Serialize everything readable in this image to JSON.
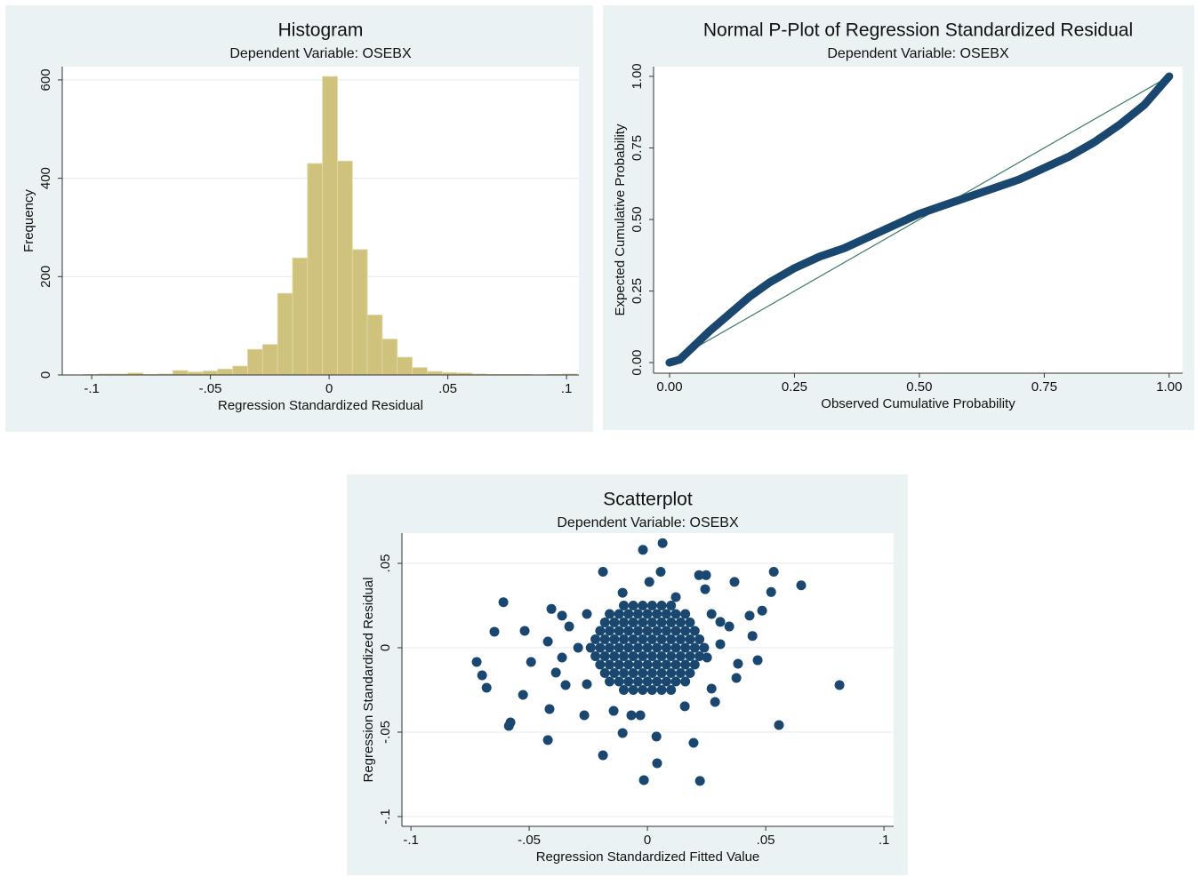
{
  "chart_data": [
    {
      "type": "histogram",
      "title": "Histogram",
      "subtitle": "Dependent Variable: OSEBX",
      "x_label": "Regression Standardized Residual",
      "y_label": "Frequency",
      "bins": [
        -0.1036,
        -0.0973,
        -0.091,
        -0.0847,
        -0.0784,
        -0.0721,
        -0.0658,
        -0.0595,
        -0.0532,
        -0.0469,
        -0.0406,
        -0.0343,
        -0.028,
        -0.0217,
        -0.0154,
        -0.0091,
        -0.0028,
        0.0035,
        0.0098,
        0.0161,
        0.0224,
        0.0287,
        0.035,
        0.0413,
        0.0476,
        0.0539,
        0.0602,
        0.0665,
        0.0728,
        0.0791,
        0.0854,
        0.0917,
        0.098,
        0.1043
      ],
      "values": [
        1,
        2,
        2,
        4,
        1,
        2,
        9,
        6,
        8,
        12,
        18,
        52,
        62,
        166,
        238,
        430,
        607,
        435,
        255,
        122,
        73,
        36,
        15,
        7,
        5,
        4,
        2,
        1,
        1,
        1,
        0,
        1,
        2
      ],
      "color": "#cfc27c",
      "xlim": [
        -0.1124,
        0.1052
      ],
      "xticks": [
        {
          "value": -0.1,
          "label": "-.1"
        },
        {
          "value": -0.05,
          "label": "-.05"
        },
        0,
        {
          "value": 0.05,
          "label": ".05"
        },
        {
          "value": 0.1,
          "label": ".1"
        }
      ],
      "ylim": [
        0,
        627
      ],
      "yticks": [
        0,
        200,
        400,
        600
      ],
      "grid": true
    },
    {
      "type": "line",
      "title": "Normal P-Plot of Regression Standardized Residual",
      "subtitle": "Dependent Variable: OSEBX",
      "x_label": "Observed Cumulative Probability",
      "y_label": "Expected Cumulative Probability",
      "series": [
        {
          "color": "#1a476f",
          "width": 9,
          "x": [
            0,
            0.02,
            0.05,
            0.08,
            0.12,
            0.16,
            0.2,
            0.25,
            0.3,
            0.35,
            0.4,
            0.45,
            0.5,
            0.55,
            0.6,
            0.65,
            0.7,
            0.75,
            0.8,
            0.85,
            0.9,
            0.95,
            0.98,
            1
          ],
          "values": [
            0,
            0.01,
            0.06,
            0.11,
            0.17,
            0.23,
            0.28,
            0.33,
            0.37,
            0.4,
            0.44,
            0.48,
            0.52,
            0.55,
            0.58,
            0.61,
            0.64,
            0.68,
            0.72,
            0.77,
            0.83,
            0.9,
            0.96,
            1
          ]
        },
        {
          "color": "#3a7a6a",
          "width": 1.2,
          "x": [
            0,
            1
          ],
          "values": [
            0,
            1
          ]
        }
      ],
      "xlim": [
        -0.032,
        1.027
      ],
      "xticks": [
        {
          "value": 0,
          "label": "0.00"
        },
        {
          "value": 0.25,
          "label": "0.25"
        },
        {
          "value": 0.5,
          "label": "0.50"
        },
        {
          "value": 0.75,
          "label": "0.75"
        },
        {
          "value": 1,
          "label": "1.00"
        }
      ],
      "ylim": [
        -0.037,
        1.034
      ],
      "yticks": [
        {
          "value": 0,
          "label": "0.00"
        },
        {
          "value": 0.25,
          "label": "0.25"
        },
        {
          "value": 0.5,
          "label": "0.50"
        },
        {
          "value": 0.75,
          "label": "0.75"
        },
        {
          "value": 1,
          "label": "1.00"
        }
      ],
      "grid": false
    },
    {
      "type": "scatter",
      "title": "Scatterplot",
      "subtitle": "Dependent Variable: OSEBX",
      "x_label": "Regression Standardized Fitted Value",
      "y_label": "Regression Standardized Residual",
      "color": "#1a476f",
      "x": [
        -0.01,
        -0.006,
        -0.002,
        0.002,
        0.006,
        0.01,
        -0.016,
        -0.012,
        -0.008,
        -0.004,
        0,
        0.004,
        0.008,
        0.012,
        0.016,
        -0.018,
        -0.014,
        -0.01,
        -0.006,
        -0.002,
        0.002,
        0.006,
        0.01,
        0.014,
        0.018,
        -0.02,
        -0.016,
        -0.012,
        -0.008,
        -0.004,
        0,
        0.004,
        0.008,
        0.012,
        0.016,
        0.02,
        -0.022,
        -0.018,
        -0.014,
        -0.01,
        -0.006,
        -0.002,
        0.002,
        0.006,
        0.01,
        0.014,
        0.018,
        0.022,
        -0.024,
        -0.02,
        -0.016,
        -0.012,
        -0.008,
        -0.004,
        0,
        0.004,
        0.008,
        0.012,
        0.016,
        0.02,
        0.024,
        -0.022,
        -0.018,
        -0.014,
        -0.01,
        -0.006,
        -0.002,
        0.002,
        0.006,
        0.01,
        0.014,
        0.018,
        0.022,
        -0.02,
        -0.016,
        -0.012,
        -0.008,
        -0.004,
        0,
        0.004,
        0.008,
        0.012,
        0.016,
        0.02,
        -0.018,
        -0.014,
        -0.01,
        -0.006,
        -0.002,
        0.002,
        0.006,
        0.01,
        0.014,
        0.018,
        -0.016,
        -0.012,
        -0.008,
        -0.004,
        0,
        0.004,
        0.008,
        0.012,
        0.016,
        -0.01,
        -0.006,
        -0.002,
        0.002,
        0.006,
        0.01,
        0.0064,
        -0.0019,
        -0.0188,
        0.0056,
        0.0218,
        0.0248,
        0.0534,
        0.0368,
        0.065,
        0.0523,
        -0.0609,
        0.0485,
        0.0432,
        -0.0647,
        -0.0519,
        -0.0406,
        -0.0361,
        0.0346,
        0.0444,
        -0.0722,
        -0.0699,
        -0.068,
        -0.0492,
        0.0466,
        0.0383,
        0.0376,
        0.0812,
        -0.0526,
        -0.0414,
        -0.0579,
        -0.0586,
        0.0556,
        -0.0421,
        -0.0188,
        0.0041,
        -0.0015,
        0.0222,
        0.0195,
        0.0038,
        -0.0105,
        -0.0267,
        0.0286,
        -0.0346,
        -0.0387,
        0.0308,
        0.0244,
        0.012,
        -0.0105,
        -0.0331,
        -0.0421,
        -0.0361,
        0.0271,
        0.0158,
        -0.0068,
        -0.0143,
        -0.0256,
        0.0271,
        -0.0256,
        0.0252,
        -0.0293,
        0.0308,
        0.0008,
        -0.003
      ],
      "values": [
        0.025,
        0.025,
        0.025,
        0.025,
        0.025,
        0.025,
        0.02,
        0.02,
        0.02,
        0.02,
        0.02,
        0.02,
        0.02,
        0.02,
        0.02,
        0.015,
        0.015,
        0.015,
        0.015,
        0.015,
        0.015,
        0.015,
        0.015,
        0.015,
        0.015,
        0.01,
        0.01,
        0.01,
        0.01,
        0.01,
        0.01,
        0.01,
        0.01,
        0.01,
        0.01,
        0.01,
        0.005,
        0.005,
        0.005,
        0.005,
        0.005,
        0.005,
        0.005,
        0.005,
        0.005,
        0.005,
        0.005,
        0.005,
        0,
        0,
        0,
        0,
        0,
        0,
        0,
        0,
        0,
        0,
        0,
        0,
        0,
        -0.005,
        -0.005,
        -0.005,
        -0.005,
        -0.005,
        -0.005,
        -0.005,
        -0.005,
        -0.005,
        -0.005,
        -0.005,
        -0.005,
        -0.01,
        -0.01,
        -0.01,
        -0.01,
        -0.01,
        -0.01,
        -0.01,
        -0.01,
        -0.01,
        -0.01,
        -0.01,
        -0.015,
        -0.015,
        -0.015,
        -0.015,
        -0.015,
        -0.015,
        -0.015,
        -0.015,
        -0.015,
        -0.015,
        -0.02,
        -0.02,
        -0.02,
        -0.02,
        -0.02,
        -0.02,
        -0.02,
        -0.02,
        -0.02,
        -0.025,
        -0.025,
        -0.025,
        -0.025,
        -0.025,
        -0.025,
        0.062,
        0.058,
        0.045,
        0.045,
        0.043,
        0.043,
        0.045,
        0.039,
        0.037,
        0.033,
        0.027,
        0.022,
        0.019,
        0.0095,
        0.01,
        0.023,
        0.019,
        0.0126,
        0.007,
        -0.0084,
        -0.0163,
        -0.0237,
        -0.0084,
        -0.0074,
        -0.0095,
        -0.0179,
        -0.0221,
        -0.0279,
        -0.0363,
        -0.0442,
        -0.0463,
        -0.0458,
        -0.0547,
        -0.0637,
        -0.0684,
        -0.0784,
        -0.0789,
        -0.0563,
        -0.0526,
        -0.0505,
        -0.04,
        -0.0321,
        -0.0221,
        -0.0147,
        0.0153,
        0.0347,
        0.03,
        0.0326,
        0.0126,
        0.0037,
        -0.0058,
        -0.0242,
        -0.0347,
        -0.04,
        -0.0374,
        0.02,
        0.02,
        -0.0216,
        -0.0058,
        0,
        0.0021,
        0.039,
        -0.04
      ],
      "xlim": [
        -0.1038,
        0.1041
      ],
      "xticks": [
        {
          "value": -0.1,
          "label": "-.1"
        },
        {
          "value": -0.05,
          "label": "-.05"
        },
        0,
        {
          "value": 0.05,
          "label": ".05"
        },
        {
          "value": 0.1,
          "label": ".1"
        }
      ],
      "ylim": [
        -0.1058,
        0.0679
      ],
      "yticks": [
        {
          "value": -0.1,
          "label": "-.1"
        },
        {
          "value": -0.05,
          "label": "-.05"
        },
        0,
        {
          "value": 0.05,
          "label": ".05"
        }
      ],
      "grid": true
    }
  ]
}
